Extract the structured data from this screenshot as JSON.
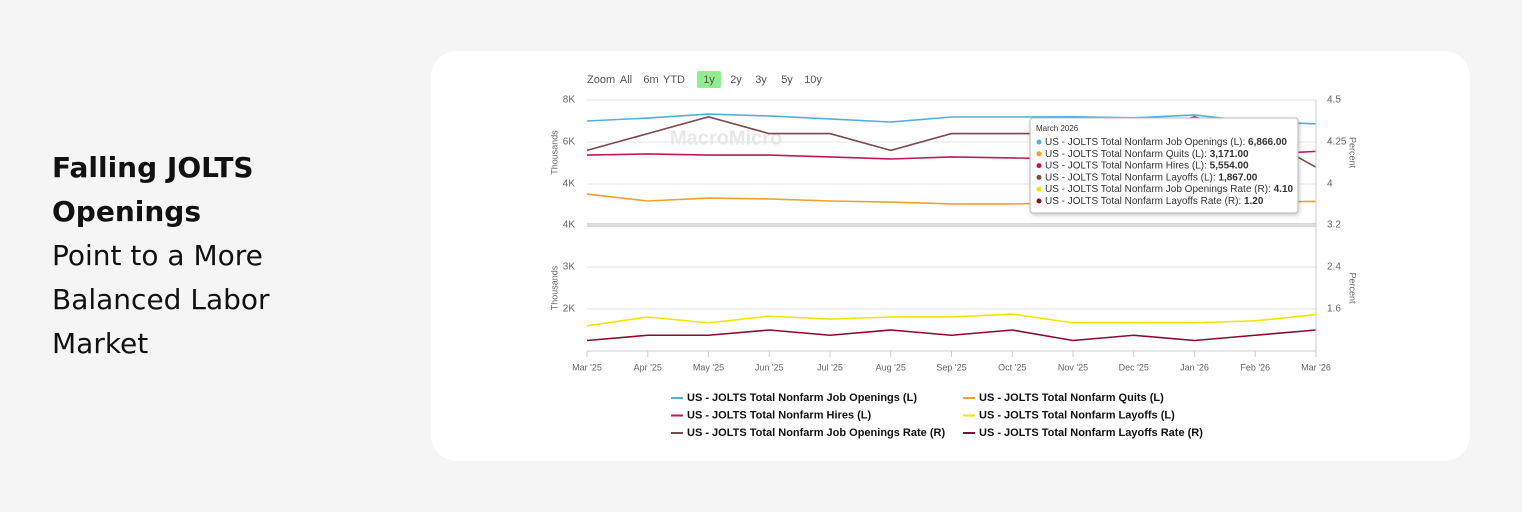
{
  "heading": {
    "title": "Falling JOLTS Openings",
    "subtitle": "Point to a More Balanced Labor Market"
  },
  "toolbar": {
    "label": "Zoom",
    "buttons": [
      "All",
      "6m",
      "YTD",
      "1y",
      "2y",
      "3y",
      "5y",
      "10y"
    ],
    "active_index": 3
  },
  "watermark": "MacroMicro",
  "tooltip": {
    "title": "March 2026",
    "rows": [
      {
        "label": "US - JOLTS Total Nonfarm Job Openings (L): ",
        "value": "6,866.00"
      },
      {
        "label": "US - JOLTS Total Nonfarm Quits (L): ",
        "value": "3,171.00"
      },
      {
        "label": "US - JOLTS Total Nonfarm Hires (L): ",
        "value": "5,554.00"
      },
      {
        "label": "US - JOLTS Total Nonfarm Layoffs (L): ",
        "value": "1,867.00"
      },
      {
        "label": "US - JOLTS Total Nonfarm Job Openings Rate (R): ",
        "value": "4.10"
      },
      {
        "label": "US - JOLTS Total Nonfarm Layoffs Rate (R): ",
        "value": "1.20"
      }
    ]
  },
  "chart_data": [
    {
      "type": "line",
      "ylabel": "Thousands",
      "y2label": "Percent",
      "grid": true,
      "ylim": [
        3000,
        8000
      ],
      "yticks": [
        {
          "value": 4000,
          "label": "4K"
        },
        {
          "value": 6000,
          "label": "6K"
        },
        {
          "value": 8000,
          "label": "8K"
        }
      ],
      "y2lim": [
        3.875,
        4.5
      ],
      "y2ticks": [
        4,
        4.25,
        4.5
      ],
      "series": [
        {
          "name": "US - JOLTS Total Nonfarm Job Openings (L)",
          "color": "#4fb3d9",
          "values": [
            7000,
            7140,
            7330,
            7240,
            7100,
            6950,
            7190,
            7190,
            7200,
            7150,
            7290,
            6960,
            6866
          ]
        },
        {
          "name": "US - JOLTS Total Nonfarm Quits (L)",
          "color": "#f0a030",
          "values": [
            3520,
            3190,
            3330,
            3290,
            3190,
            3140,
            3050,
            3050,
            3100,
            3120,
            3130,
            3150,
            3171
          ]
        },
        {
          "name": "US - JOLTS Total Nonfarm Hires (L)",
          "color": "#c2185b",
          "values": [
            5380,
            5430,
            5380,
            5380,
            5290,
            5190,
            5290,
            5240,
            5200,
            5250,
            5300,
            5400,
            5554
          ]
        },
        {
          "name": "US - JOLTS Total Nonfarm Job Openings Rate (R)",
          "color": "#7b4a4a",
          "axis": "y2",
          "values": [
            4.2,
            4.3,
            4.4,
            4.3,
            4.3,
            4.2,
            4.3,
            4.3,
            4.3,
            4.3,
            4.4,
            4.3,
            4.1
          ]
        }
      ]
    },
    {
      "type": "line",
      "ylabel": "Thousands",
      "y2label": "Percent",
      "grid": true,
      "categories": [
        "Mar '25",
        "Apr '25",
        "May '25",
        "Jun '25",
        "Jul '25",
        "Aug '25",
        "Sep '25",
        "Oct '25",
        "Nov '25",
        "Dec '25",
        "Jan '26",
        "Feb '26",
        "Mar '26"
      ],
      "ylim": [
        1000,
        4000
      ],
      "yticks": [
        {
          "value": 2000,
          "label": "2K"
        },
        {
          "value": 3000,
          "label": "3K"
        },
        {
          "value": 4000,
          "label": "4K"
        }
      ],
      "y2lim": [
        0.8,
        3.2
      ],
      "y2ticks": [
        1.6,
        2.4,
        3.2
      ],
      "series": [
        {
          "name": "US - JOLTS Total Nonfarm Layoffs (L)",
          "color": "#f2e600",
          "values": [
            1600,
            1810,
            1670,
            1830,
            1760,
            1810,
            1810,
            1880,
            1670,
            1670,
            1670,
            1720,
            1867
          ]
        },
        {
          "name": "US - JOLTS Total Nonfarm Layoffs Rate (R)",
          "color": "#8b0a2a",
          "axis": "y2",
          "values": [
            1.0,
            1.1,
            1.1,
            1.2,
            1.1,
            1.2,
            1.1,
            1.2,
            1.0,
            1.1,
            1.0,
            1.1,
            1.2
          ]
        }
      ]
    }
  ]
}
